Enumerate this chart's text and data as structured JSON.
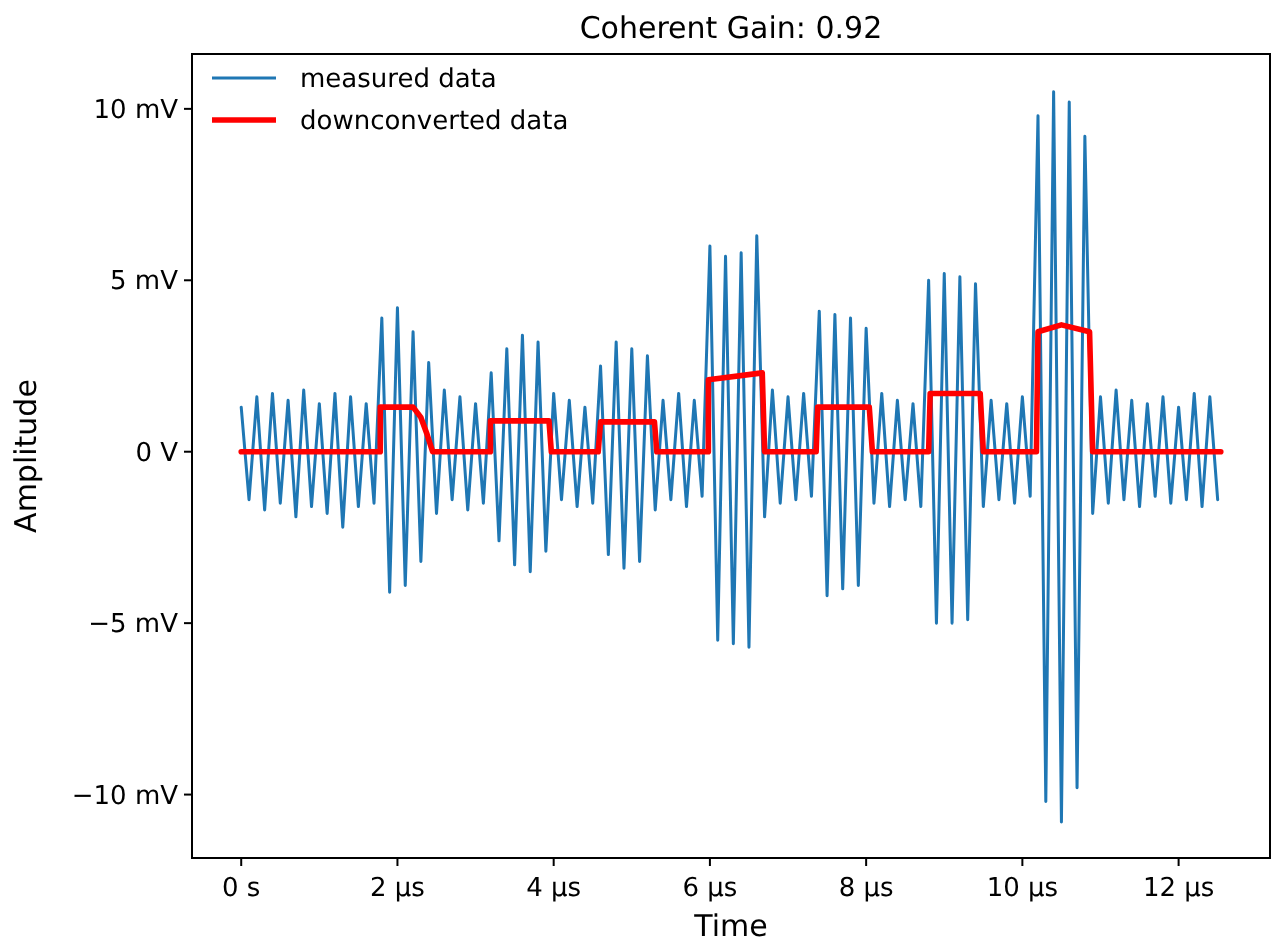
{
  "chart_data": {
    "type": "line",
    "title": "Coherent Gain: 0.92",
    "xlabel": "Time",
    "ylabel": "Amplitude",
    "xlim": [
      -0.63,
      13.17
    ],
    "ylim": [
      -11.85,
      11.6
    ],
    "xticks": [
      {
        "value": 0,
        "label": "0 s"
      },
      {
        "value": 2,
        "label": "2 µs"
      },
      {
        "value": 4,
        "label": "4 µs"
      },
      {
        "value": 6,
        "label": "6 µs"
      },
      {
        "value": 8,
        "label": "8 µs"
      },
      {
        "value": 10,
        "label": "10 µs"
      },
      {
        "value": 12,
        "label": "12 µs"
      }
    ],
    "yticks": [
      {
        "value": -10,
        "label": "−10 mV"
      },
      {
        "value": -5,
        "label": "−5 mV"
      },
      {
        "value": 0,
        "label": "0 V"
      },
      {
        "value": 5,
        "label": "5 mV"
      },
      {
        "value": 10,
        "label": "10 mV"
      }
    ],
    "legend": "top left",
    "grid": false,
    "marker": "none",
    "line_style": "solid",
    "series": [
      {
        "name": "measured data",
        "color": "#1f77b4",
        "x": [
          0,
          0.1,
          0.2,
          0.3,
          0.4,
          0.5,
          0.6,
          0.7,
          0.8,
          0.9,
          1,
          1.1,
          1.2,
          1.3,
          1.4,
          1.5,
          1.6,
          1.7,
          1.8,
          1.9,
          2,
          2.1,
          2.2,
          2.3,
          2.4,
          2.5,
          2.6,
          2.7,
          2.8,
          2.9,
          3,
          3.1,
          3.2,
          3.3,
          3.4,
          3.5,
          3.6,
          3.7,
          3.8,
          3.9,
          4,
          4.1,
          4.2,
          4.3,
          4.4,
          4.5,
          4.6,
          4.7,
          4.8,
          4.9,
          5,
          5.1,
          5.2,
          5.3,
          5.4,
          5.5,
          5.6,
          5.7,
          5.8,
          5.9,
          6,
          6.1,
          6.2,
          6.3,
          6.4,
          6.5,
          6.6,
          6.7,
          6.8,
          6.9,
          7,
          7.1,
          7.2,
          7.3,
          7.4,
          7.5,
          7.6,
          7.7,
          7.8,
          7.9,
          8,
          8.1,
          8.2,
          8.3,
          8.4,
          8.5,
          8.6,
          8.7,
          8.8,
          8.9,
          9,
          9.1,
          9.2,
          9.3,
          9.4,
          9.5,
          9.6,
          9.7,
          9.8,
          9.9,
          10,
          10.1,
          10.2,
          10.3,
          10.4,
          10.5,
          10.6,
          10.7,
          10.8,
          10.9,
          11,
          11.1,
          11.2,
          11.3,
          11.4,
          11.5,
          11.6,
          11.7,
          11.8,
          11.9,
          12,
          12.1,
          12.2,
          12.3,
          12.4,
          12.5
        ],
        "values": [
          1.3,
          -1.4,
          1.6,
          -1.7,
          1.7,
          -1.5,
          1.5,
          -1.9,
          1.8,
          -1.6,
          1.4,
          -1.8,
          1.7,
          -2.2,
          1.6,
          -1.6,
          1.4,
          -1.5,
          3.9,
          -4.1,
          4.2,
          -3.9,
          3.5,
          -3.2,
          2.6,
          -1.8,
          1.8,
          -1.4,
          1.6,
          -1.7,
          1.4,
          -1.5,
          2.3,
          -2.6,
          3.0,
          -3.3,
          3.4,
          -3.5,
          3.2,
          -2.9,
          1.7,
          -1.4,
          1.5,
          -1.6,
          1.3,
          -1.5,
          2.5,
          -3.0,
          3.2,
          -3.4,
          3.0,
          -3.2,
          2.8,
          -1.7,
          1.5,
          -1.4,
          1.7,
          -1.6,
          1.5,
          -1.3,
          6.0,
          -5.5,
          5.7,
          -5.6,
          5.8,
          -5.7,
          6.3,
          -1.9,
          1.8,
          -1.5,
          1.6,
          -1.4,
          1.7,
          -1.3,
          4.1,
          -4.2,
          4.0,
          -4.0,
          3.9,
          -3.9,
          3.6,
          -1.5,
          1.7,
          -1.6,
          1.5,
          -1.4,
          1.4,
          -1.6,
          5.0,
          -5.0,
          5.2,
          -5.0,
          5.1,
          -4.9,
          4.9,
          -1.6,
          1.5,
          -1.4,
          1.4,
          -1.5,
          1.6,
          -1.3,
          9.8,
          -10.2,
          10.5,
          -10.8,
          10.2,
          -9.8,
          9.2,
          -1.8,
          1.6,
          -1.5,
          1.8,
          -1.4,
          1.5,
          -1.6,
          1.4,
          -1.3,
          1.6,
          -1.5,
          1.3,
          -1.4,
          1.7,
          -1.6,
          1.6,
          -1.4
        ]
      },
      {
        "name": "downconverted data",
        "color": "#ff0000",
        "x": [
          0,
          1.78,
          1.78,
          2.2,
          2.3,
          2.38,
          2.45,
          3.19,
          3.19,
          3.94,
          3.97,
          4.57,
          4.6,
          5.29,
          5.32,
          5.98,
          5.98,
          6.67,
          6.7,
          7.36,
          7.38,
          8.04,
          8.08,
          8.8,
          8.82,
          9.46,
          9.5,
          10.18,
          10.2,
          10.5,
          10.86,
          10.9,
          12.54
        ],
        "values": [
          0,
          0,
          1.3,
          1.3,
          1.0,
          0.5,
          0,
          0,
          0.9,
          0.9,
          0,
          0,
          0.87,
          0.87,
          0,
          0,
          2.1,
          2.3,
          0,
          0,
          1.3,
          1.3,
          0,
          0,
          1.7,
          1.7,
          0,
          0,
          3.5,
          3.7,
          3.5,
          0,
          0
        ]
      }
    ]
  }
}
